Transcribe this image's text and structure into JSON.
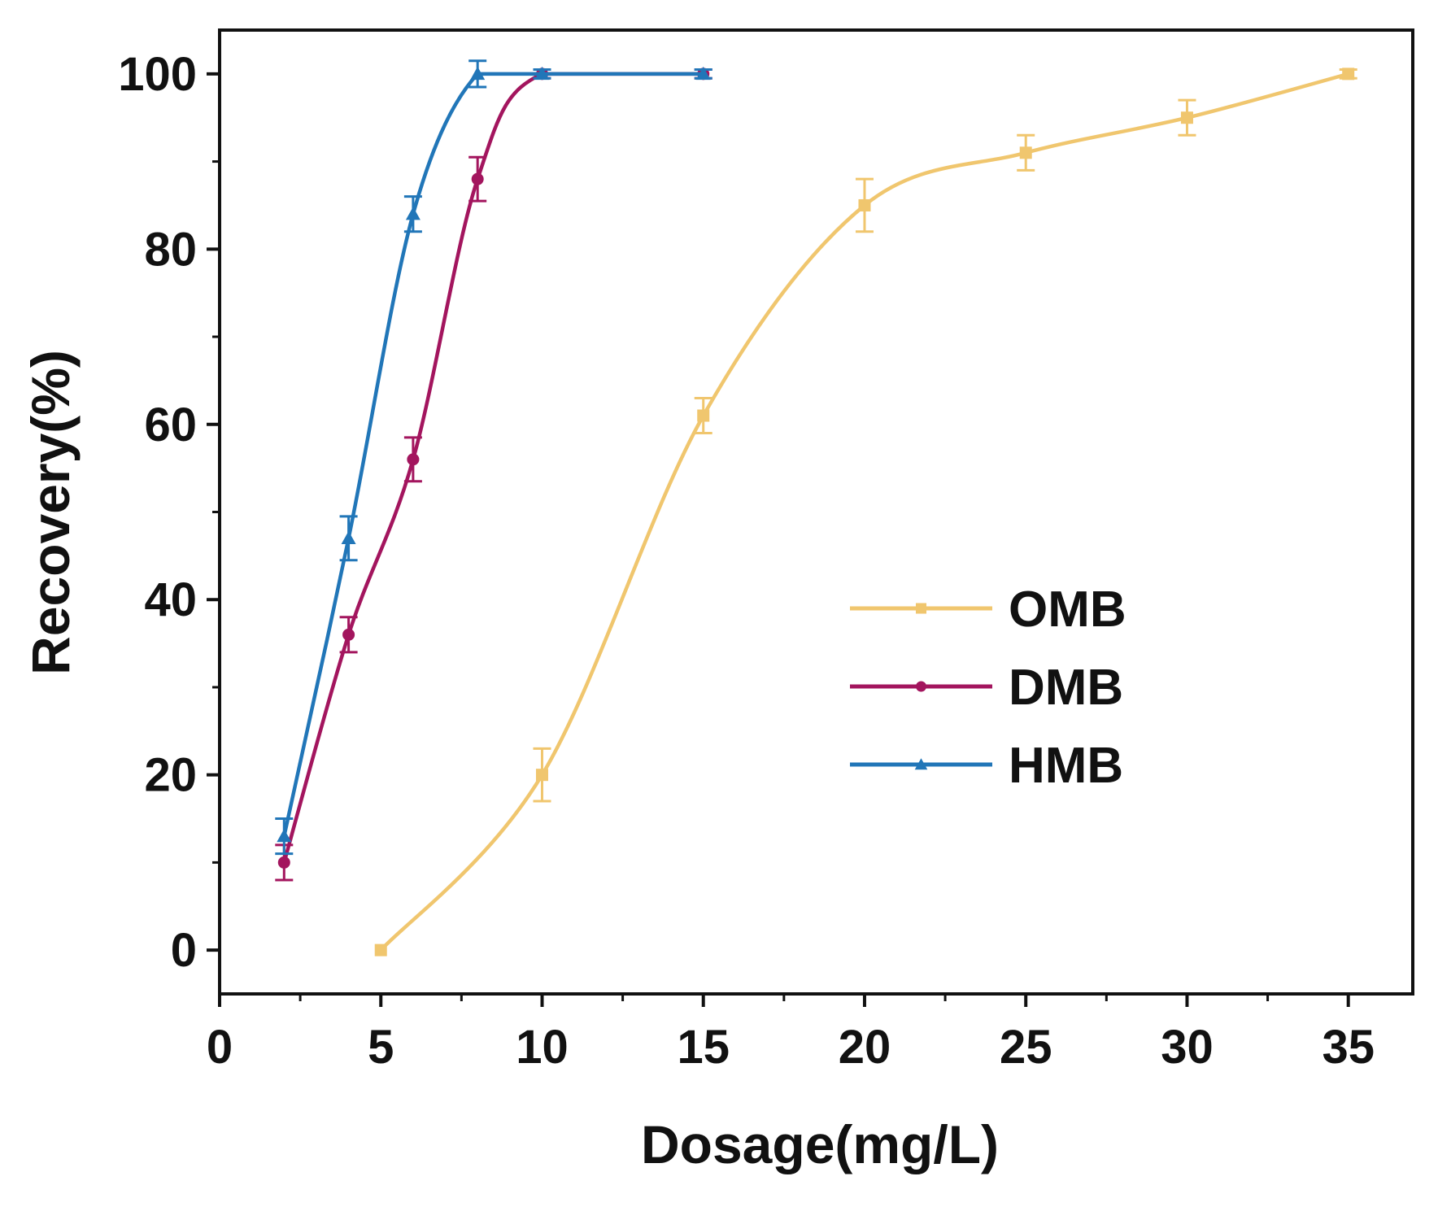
{
  "chart_data": {
    "type": "line",
    "xlabel": "Dosage(mg/L)",
    "ylabel": "Recovery(%)",
    "xlim": [
      0,
      37
    ],
    "ylim": [
      -5,
      105
    ],
    "xticks": [
      0,
      5,
      10,
      15,
      20,
      25,
      30,
      35
    ],
    "yticks": [
      0,
      20,
      40,
      60,
      80,
      100
    ],
    "grid": false,
    "legend_position": "center-right",
    "series": [
      {
        "name": "OMB",
        "color": "#F0C66E",
        "marker": "square",
        "x": [
          5,
          10,
          15,
          20,
          25,
          30,
          35
        ],
        "y": [
          0,
          20,
          61,
          85,
          91,
          95,
          100
        ],
        "error": [
          0,
          3,
          2,
          3,
          2,
          2,
          0.5
        ]
      },
      {
        "name": "DMB",
        "color": "#A3155E",
        "marker": "circle",
        "x": [
          2,
          4,
          6,
          8,
          10,
          15
        ],
        "y": [
          10,
          36,
          56,
          88,
          100,
          100
        ],
        "error": [
          2,
          2,
          2.5,
          2.5,
          0.5,
          0.5
        ]
      },
      {
        "name": "HMB",
        "color": "#2176B8",
        "marker": "triangle",
        "x": [
          2,
          4,
          6,
          8,
          10,
          15
        ],
        "y": [
          13,
          47,
          84,
          100,
          100,
          100
        ],
        "error": [
          2,
          2.5,
          2,
          1.5,
          0.5,
          0.5
        ]
      }
    ]
  }
}
